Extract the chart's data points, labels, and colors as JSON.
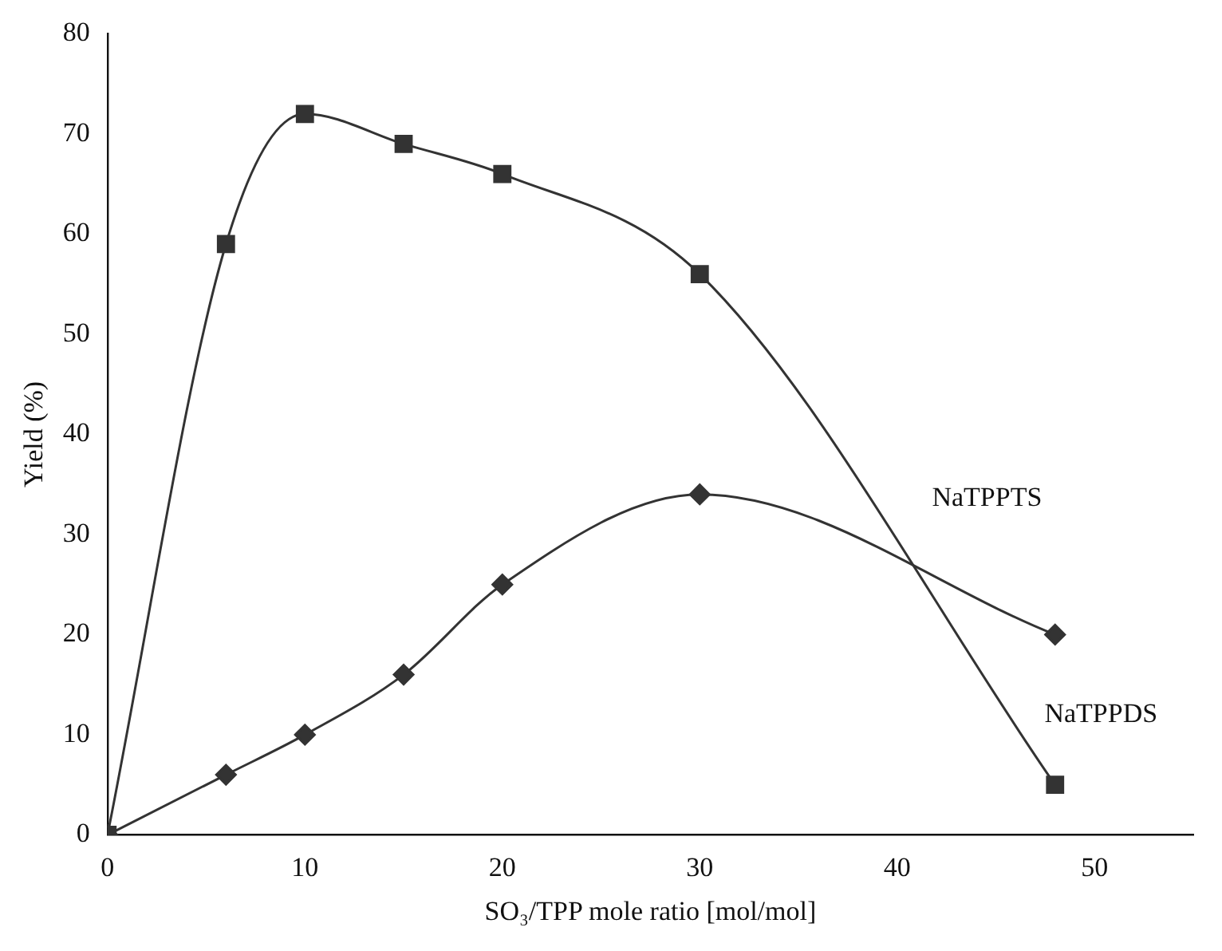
{
  "chart_data": {
    "type": "line",
    "xlabel": "SO₃/TPP mole ratio [mol/mol]",
    "ylabel": "Yield (%)",
    "xlim": [
      0,
      55
    ],
    "xticks": [
      0,
      10,
      20,
      30,
      40,
      50
    ],
    "ylim": [
      0,
      80
    ],
    "yticks": [
      0,
      10,
      20,
      30,
      40,
      50,
      60,
      70,
      80
    ],
    "grid": false,
    "legend": false,
    "series": [
      {
        "color": "#333333",
        "marker": "square",
        "x": [
          0,
          6,
          10,
          15,
          20,
          30,
          48
        ],
        "values": [
          0,
          59,
          72,
          69,
          66,
          56,
          5
        ]
      },
      {
        "color": "#333333",
        "marker": "diamond",
        "x": [
          0,
          6,
          10,
          15,
          20,
          30,
          48
        ],
        "values": [
          0,
          6,
          10,
          16,
          25,
          34,
          20
        ]
      }
    ],
    "annotations": [
      "NaTPPTS",
      "NaTPPDS"
    ]
  }
}
